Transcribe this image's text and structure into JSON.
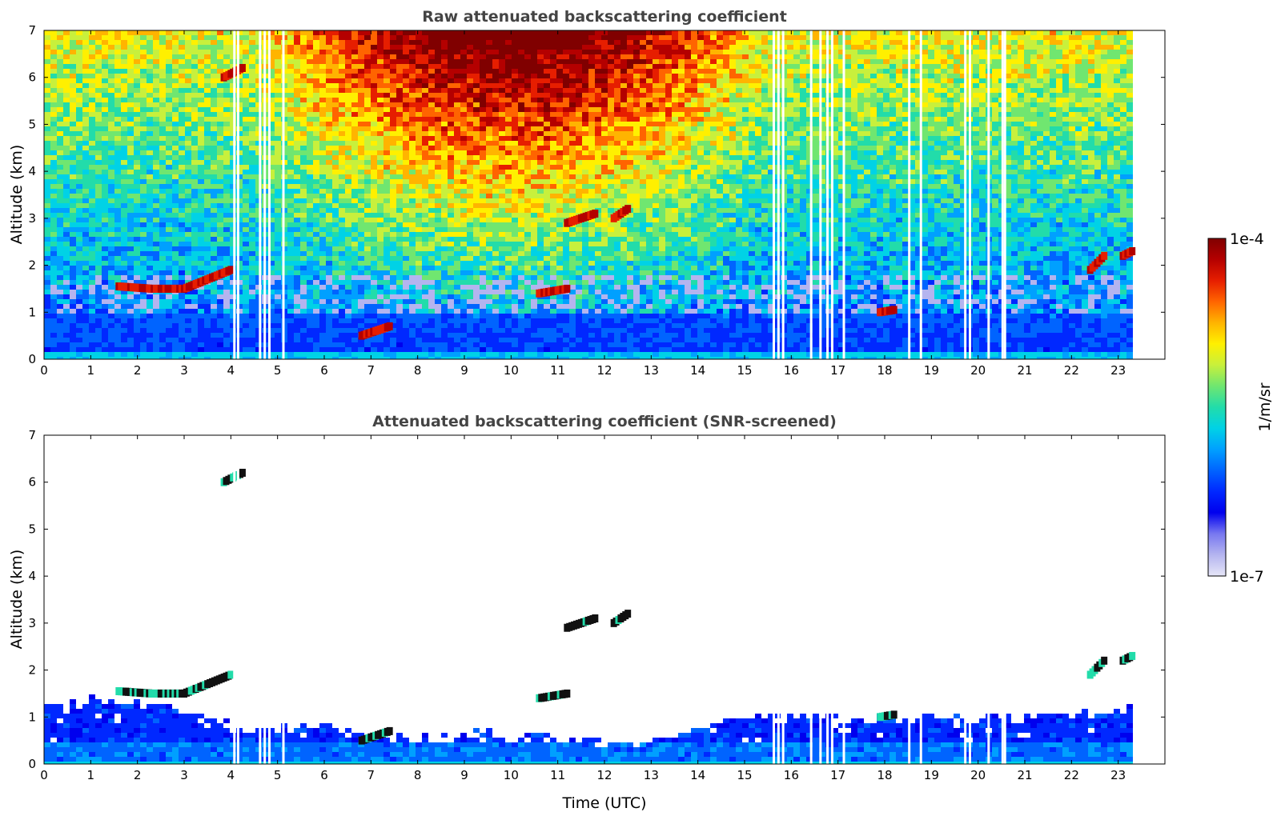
{
  "chart_data": [
    {
      "type": "heatmap",
      "title": "Raw attenuated backscattering coefficient",
      "xlabel": "",
      "ylabel": "Altitude (km)",
      "xlim": [
        0,
        24
      ],
      "ylim": [
        0,
        7
      ],
      "xticks": [
        "0",
        "1",
        "2",
        "3",
        "4",
        "5",
        "6",
        "7",
        "8",
        "9",
        "10",
        "11",
        "12",
        "13",
        "14",
        "15",
        "16",
        "17",
        "18",
        "19",
        "20",
        "21",
        "22",
        "23"
      ],
      "yticks": [
        "0",
        "1",
        "2",
        "3",
        "4",
        "5",
        "6",
        "7"
      ],
      "data_end_hour": 23.3,
      "cloud_layers": [
        {
          "start": 1.6,
          "end": 3.0,
          "altitude": [
            1.55,
            1.5,
            1.5
          ]
        },
        {
          "start": 3.0,
          "end": 4.0,
          "altitude": [
            1.5,
            1.7,
            1.9
          ]
        },
        {
          "start": 3.85,
          "end": 4.25,
          "altitude": [
            6.0,
            6.2
          ]
        },
        {
          "start": 11.2,
          "end": 11.8,
          "altitude": [
            2.9,
            3.1
          ]
        },
        {
          "start": 12.2,
          "end": 12.5,
          "altitude": [
            3.0,
            3.2
          ]
        },
        {
          "start": 10.6,
          "end": 11.2,
          "altitude": [
            1.4,
            1.5
          ]
        },
        {
          "start": 22.4,
          "end": 22.7,
          "altitude": [
            1.9,
            2.2
          ]
        },
        {
          "start": 23.1,
          "end": 23.3,
          "altitude": [
            2.2,
            2.3
          ]
        },
        {
          "start": 6.8,
          "end": 7.4,
          "altitude": [
            0.5,
            0.7
          ]
        },
        {
          "start": 17.9,
          "end": 18.2,
          "altitude": [
            1.0,
            1.05
          ]
        }
      ],
      "data_gaps_hours": [
        4.05,
        4.13,
        4.6,
        4.7,
        4.8,
        5.1,
        15.6,
        15.7,
        15.8,
        16.4,
        16.6,
        16.75,
        16.85,
        17.1,
        18.5,
        18.75,
        19.7,
        19.8,
        20.2,
        20.5,
        20.55
      ]
    },
    {
      "type": "heatmap",
      "title": "Attenuated backscattering coefficient (SNR-screened)",
      "xlabel": "Time (UTC)",
      "ylabel": "Altitude (km)",
      "xlim": [
        0,
        24
      ],
      "ylim": [
        0,
        7
      ],
      "xticks": [
        "0",
        "1",
        "2",
        "3",
        "4",
        "5",
        "6",
        "7",
        "8",
        "9",
        "10",
        "11",
        "12",
        "13",
        "14",
        "15",
        "16",
        "17",
        "18",
        "19",
        "20",
        "21",
        "22",
        "23"
      ],
      "yticks": [
        "0",
        "1",
        "2",
        "3",
        "4",
        "5",
        "6",
        "7"
      ],
      "data_end_hour": 23.3,
      "screened_top_km": [
        [
          0,
          1.3
        ],
        [
          1,
          1.4
        ],
        [
          2,
          1.35
        ],
        [
          3,
          1.2
        ],
        [
          4,
          0.8
        ],
        [
          5,
          0.85
        ],
        [
          6,
          0.9
        ],
        [
          7,
          0.7
        ],
        [
          8,
          0.55
        ],
        [
          9,
          0.7
        ],
        [
          10,
          0.6
        ],
        [
          11,
          0.6
        ],
        [
          12,
          0.55
        ],
        [
          13,
          0.55
        ],
        [
          14,
          0.8
        ],
        [
          15,
          1.1
        ],
        [
          16,
          1.05
        ],
        [
          17,
          1.0
        ],
        [
          18,
          1.05
        ],
        [
          19,
          1.0
        ],
        [
          20,
          1.05
        ],
        [
          21,
          1.05
        ],
        [
          22,
          1.1
        ],
        [
          23,
          1.2
        ],
        [
          23.3,
          1.2
        ]
      ]
    }
  ],
  "colorbar": {
    "label": "1/m/sr",
    "max_label": "1e-4",
    "min_label": "1e-7",
    "colors": [
      "#e6e6f8",
      "#b4b4ef",
      "#7878f0",
      "#0000ee",
      "#0028ff",
      "#0064ff",
      "#00a0ff",
      "#00d2e6",
      "#22dcaa",
      "#70e670",
      "#c8f03c",
      "#fff000",
      "#ffb400",
      "#ff6400",
      "#e61e00",
      "#b40000",
      "#800000"
    ]
  }
}
